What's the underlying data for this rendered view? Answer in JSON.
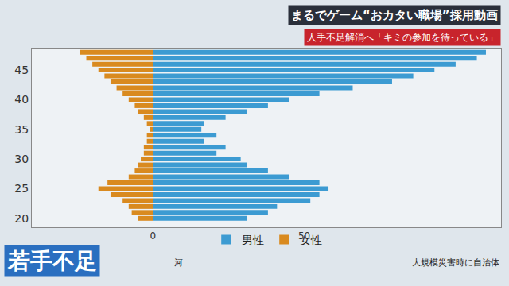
{
  "chart_data": {
    "type": "bar",
    "orientation": "horizontal",
    "stacked": true,
    "title": "まるでゲーム“おカタい職場”採用動画",
    "subtitle": "人手不足解消へ「キミの参加を待っている」",
    "caption": "若手不足",
    "photo_captions": [
      "河",
      "大規模災害時に自治体"
    ],
    "y": [
      20,
      21,
      22,
      23,
      24,
      25,
      26,
      27,
      28,
      29,
      30,
      31,
      32,
      33,
      34,
      35,
      36,
      37,
      38,
      39,
      40,
      41,
      42,
      43,
      44,
      45,
      46,
      47,
      48
    ],
    "series": [
      {
        "name": "男性",
        "color": "#3c9bd2",
        "values": [
          31,
          38,
          41,
          52,
          55,
          58,
          55,
          45,
          38,
          31,
          29,
          21,
          24,
          17,
          21,
          16,
          17,
          24,
          31,
          38,
          45,
          55,
          66,
          79,
          86,
          93,
          100,
          107,
          110
        ]
      },
      {
        "name": "女性",
        "color": "#d98a1f",
        "values": [
          -5,
          -7,
          -8,
          -10,
          -14,
          -18,
          -15,
          -8,
          -6,
          -5,
          -4,
          -3,
          -3,
          -2,
          -2,
          -1,
          -2,
          -3,
          -5,
          -6,
          -8,
          -10,
          -12,
          -14,
          -16,
          -18,
          -20,
          -22,
          -24
        ]
      }
    ],
    "xlim": [
      -40,
      115
    ],
    "xticks": [
      0,
      50
    ],
    "ylim": [
      18.5,
      48.5
    ],
    "yticks": [
      20,
      25,
      30,
      35,
      40,
      45
    ],
    "grid": false,
    "legend": "bottom"
  }
}
